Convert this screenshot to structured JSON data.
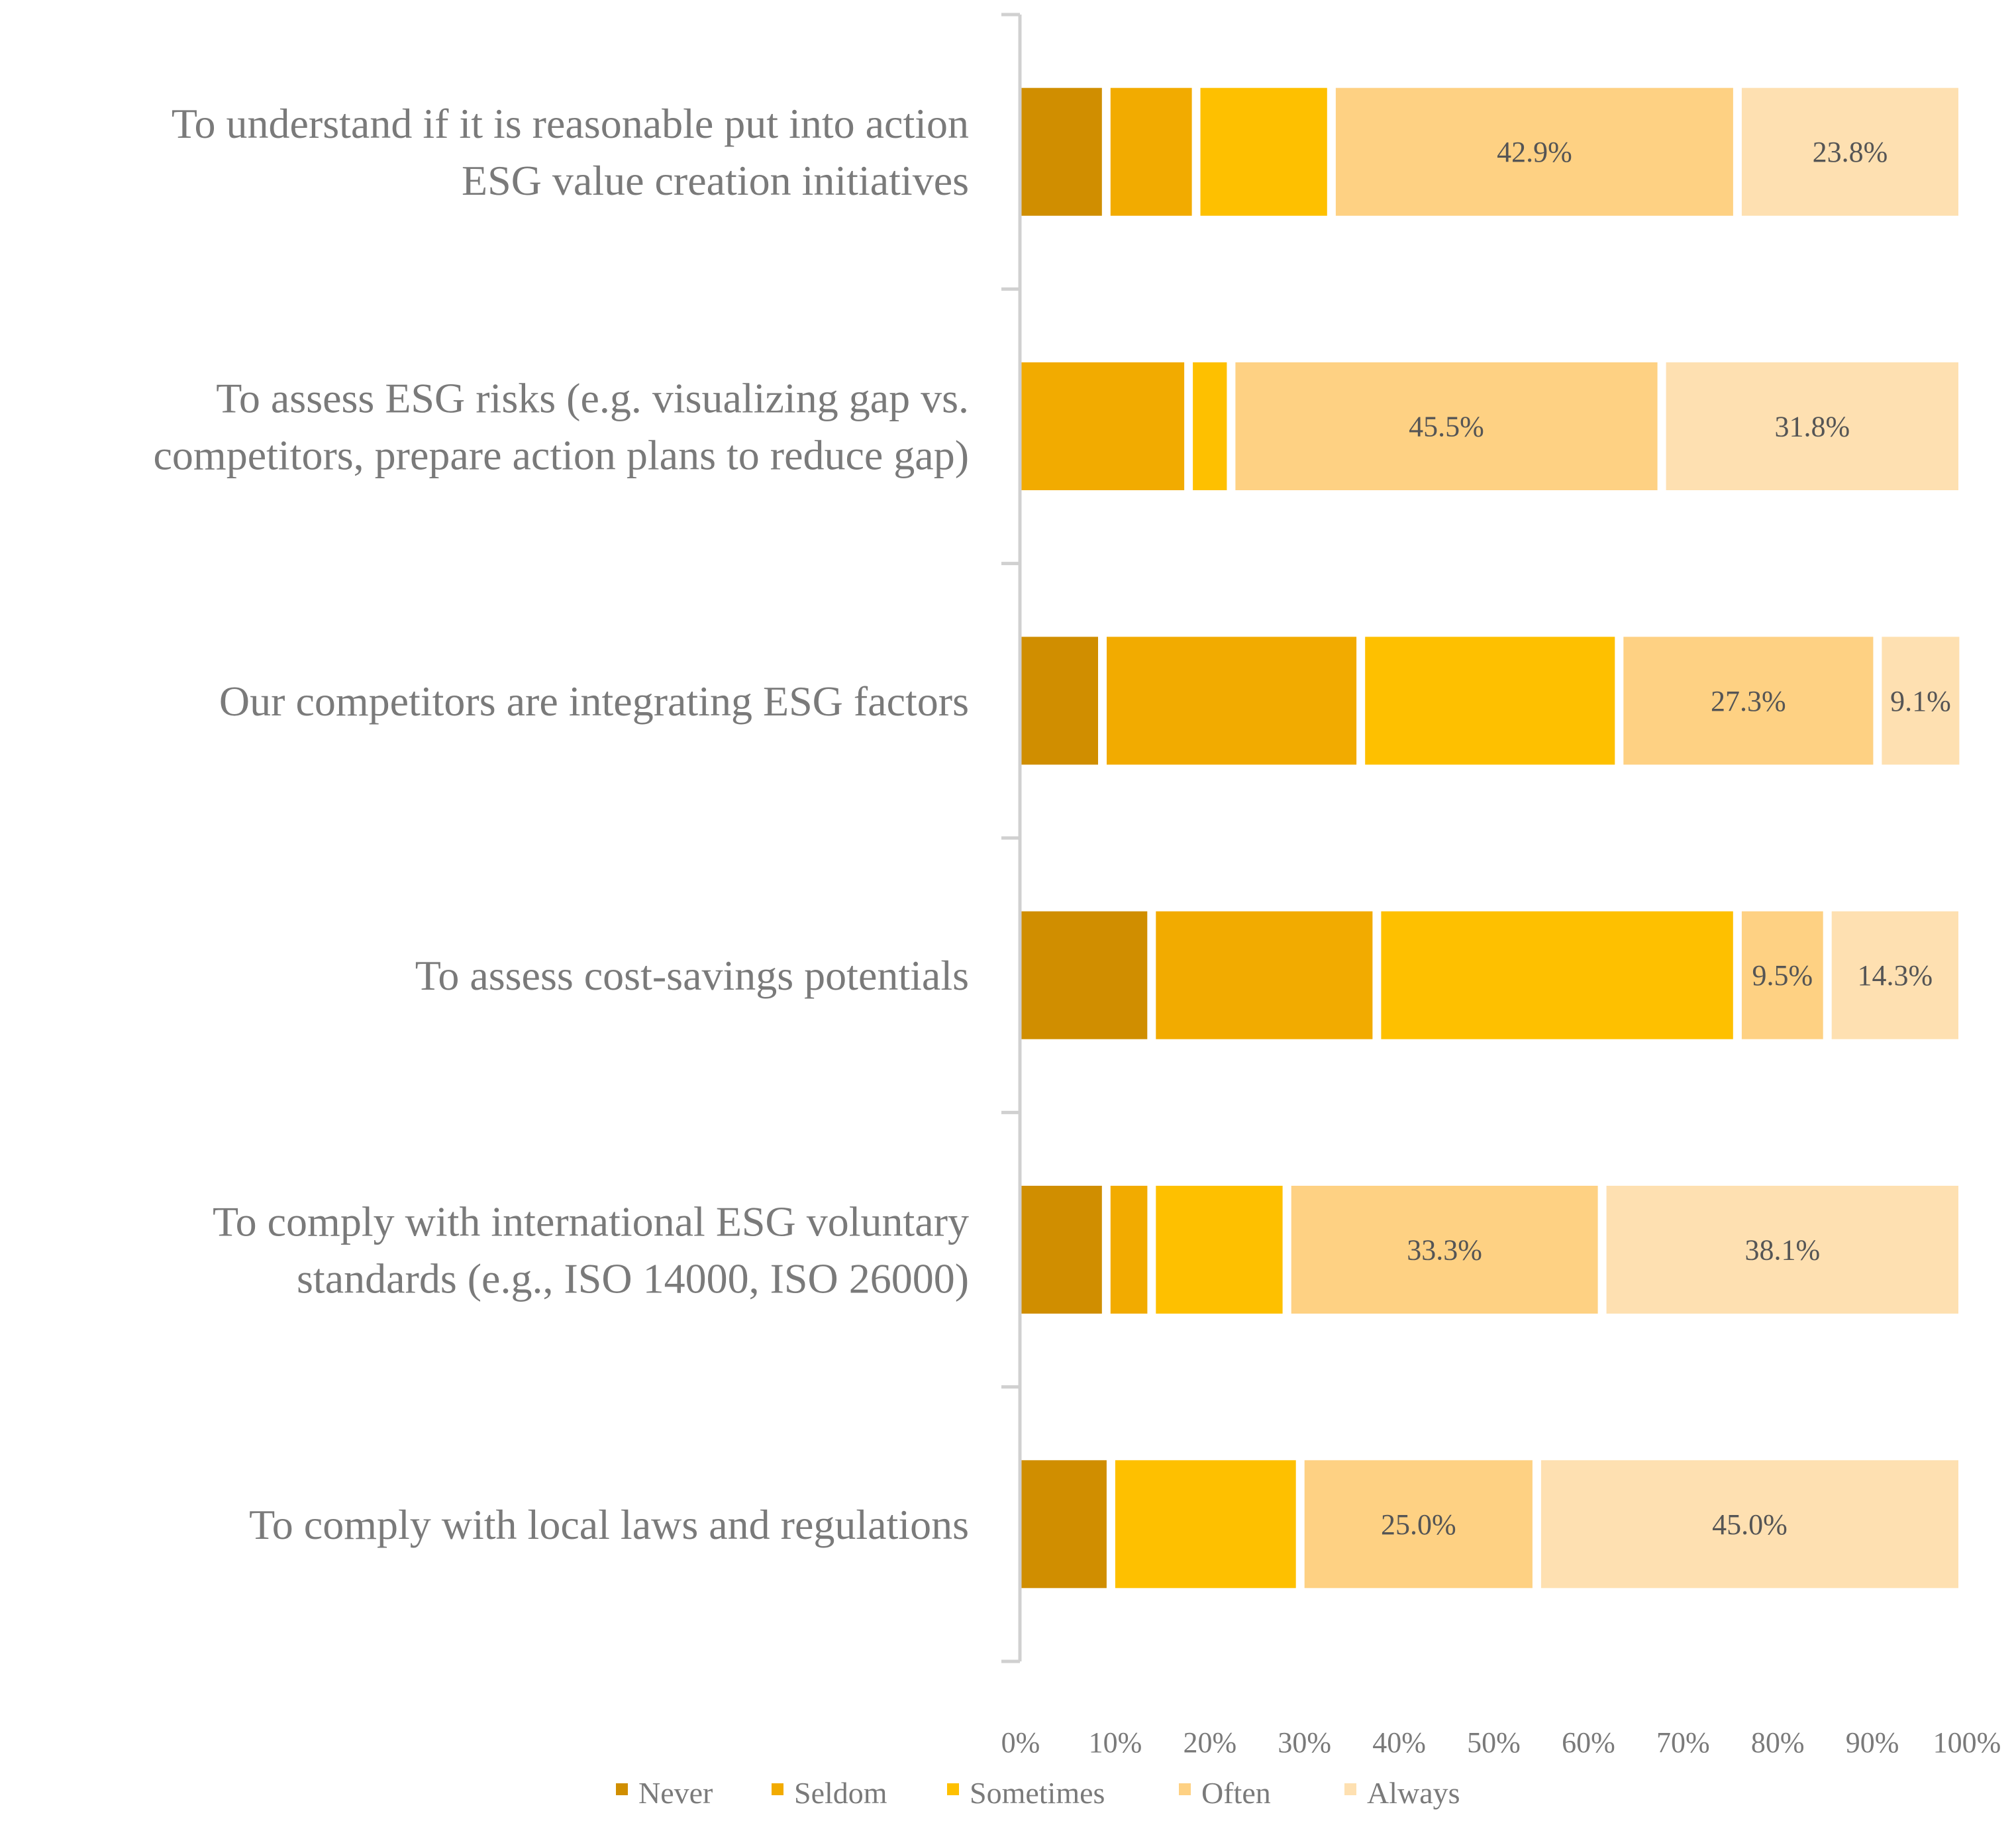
{
  "chart_data": {
    "type": "bar",
    "orientation": "horizontal",
    "stacked": "percent",
    "categories": [
      [
        "To understand if it is reasonable put into action",
        "ESG value creation initiatives"
      ],
      [
        "To assess ESG risks (e.g. visualizing gap vs.",
        "competitors, prepare action plans to reduce gap)"
      ],
      [
        "Our competitors are integrating ESG factors"
      ],
      [
        "To assess cost-savings potentials"
      ],
      [
        "To comply with international ESG voluntary",
        "standards (e.g., ISO 14000, ISO 26000)"
      ],
      [
        "To comply with local laws and regulations"
      ]
    ],
    "series": [
      {
        "name": "Never",
        "color": "#d08e00",
        "values": [
          9.5,
          0,
          9.1,
          14.3,
          9.5,
          10.0
        ]
      },
      {
        "name": "Seldom",
        "color": "#f2ab00",
        "values": [
          9.5,
          18.2,
          27.3,
          23.8,
          4.8,
          0
        ]
      },
      {
        "name": "Sometimes",
        "color": "#fec000",
        "values": [
          14.3,
          4.5,
          27.3,
          38.1,
          14.3,
          20.0
        ]
      },
      {
        "name": "Often",
        "color": "#fed183",
        "values": [
          42.9,
          45.5,
          27.3,
          9.5,
          33.3,
          25.0
        ]
      },
      {
        "name": "Always",
        "color": "#fee0b1",
        "values": [
          23.8,
          31.8,
          9.1,
          14.3,
          38.1,
          45.0
        ]
      }
    ],
    "data_labels": [
      {
        "category": 0,
        "series": 3,
        "text": "42.9%"
      },
      {
        "category": 0,
        "series": 4,
        "text": "23.8%"
      },
      {
        "category": 1,
        "series": 3,
        "text": "45.5%"
      },
      {
        "category": 1,
        "series": 4,
        "text": "31.8%"
      },
      {
        "category": 2,
        "series": 3,
        "text": "27.3%"
      },
      {
        "category": 2,
        "series": 4,
        "text": "9.1%"
      },
      {
        "category": 3,
        "series": 3,
        "text": "9.5%"
      },
      {
        "category": 3,
        "series": 4,
        "text": "14.3%"
      },
      {
        "category": 4,
        "series": 3,
        "text": "33.3%"
      },
      {
        "category": 4,
        "series": 4,
        "text": "38.1%"
      },
      {
        "category": 5,
        "series": 3,
        "text": "25.0%"
      },
      {
        "category": 5,
        "series": 4,
        "text": "45.0%"
      }
    ],
    "xlim": [
      0,
      100
    ],
    "x_ticks": [
      "0%",
      "10%",
      "20%",
      "30%",
      "40%",
      "50%",
      "60%",
      "70%",
      "80%",
      "90%",
      "100%"
    ],
    "title": "",
    "xlabel": "",
    "ylabel": "",
    "grid": false,
    "legend_position": "bottom",
    "axis_color": "#d0d0d0",
    "text_color": "#7a7a7a",
    "label_color": "#555555"
  }
}
